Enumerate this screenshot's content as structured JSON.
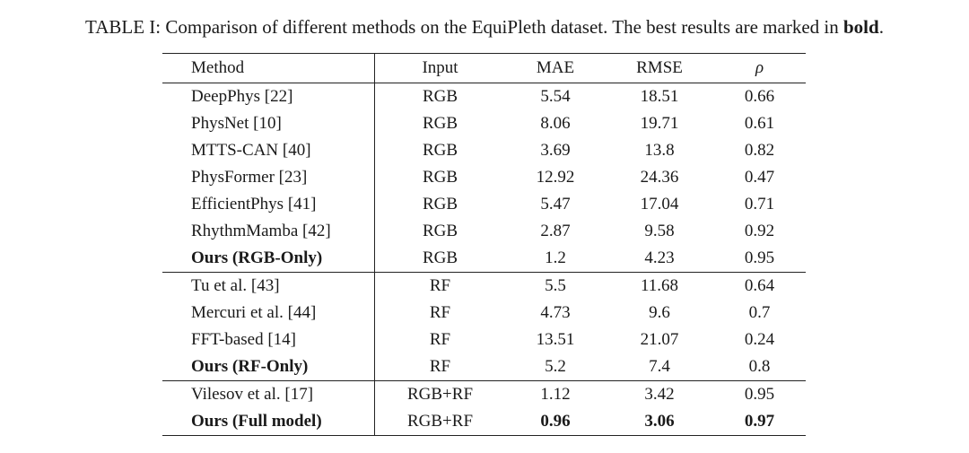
{
  "caption": {
    "prefix": "TABLE I: Comparison of different methods on the EquiPleth dataset. The best results are marked in ",
    "bold_word": "bold",
    "suffix": "."
  },
  "table": {
    "headers": {
      "method": "Method",
      "input": "Input",
      "mae": "MAE",
      "rmse": "RMSE",
      "rho": "ρ"
    },
    "groups": [
      {
        "rows": [
          {
            "method": "DeepPhys [22]",
            "input": "RGB",
            "mae": "5.54",
            "rmse": "18.51",
            "rho": "0.66"
          },
          {
            "method": "PhysNet [10]",
            "input": "RGB",
            "mae": "8.06",
            "rmse": "19.71",
            "rho": "0.61"
          },
          {
            "method": "MTTS-CAN  [40]",
            "input": "RGB",
            "mae": "3.69",
            "rmse": "13.8",
            "rho": "0.82"
          },
          {
            "method": "PhysFormer [23]",
            "input": "RGB",
            "mae": "12.92",
            "rmse": "24.36",
            "rho": "0.47"
          },
          {
            "method": "EfficientPhys [41]",
            "input": "RGB",
            "mae": "5.47",
            "rmse": "17.04",
            "rho": "0.71"
          },
          {
            "method": "RhythmMamba [42]",
            "input": "RGB",
            "mae": "2.87",
            "rmse": "9.58",
            "rho": "0.92"
          },
          {
            "method": "Ours (RGB-Only)",
            "input": "RGB",
            "mae": "1.2",
            "rmse": "4.23",
            "rho": "0.95",
            "bold_method": true
          }
        ]
      },
      {
        "rows": [
          {
            "method": "Tu et al. [43]",
            "input": "RF",
            "mae": "5.5",
            "rmse": "11.68",
            "rho": "0.64"
          },
          {
            "method": "Mercuri et al. [44]",
            "input": "RF",
            "mae": "4.73",
            "rmse": "9.6",
            "rho": "0.7"
          },
          {
            "method": "FFT-based [14]",
            "input": "RF",
            "mae": "13.51",
            "rmse": "21.07",
            "rho": "0.24"
          },
          {
            "method": "Ours (RF-Only)",
            "input": "RF",
            "mae": "5.2",
            "rmse": "7.4",
            "rho": "0.8",
            "bold_method": true
          }
        ]
      },
      {
        "rows": [
          {
            "method": "Vilesov et al. [17]",
            "input": "RGB+RF",
            "mae": "1.12",
            "rmse": "3.42",
            "rho": "0.95"
          },
          {
            "method": "Ours (Full model)",
            "input": "RGB+RF",
            "mae": "0.96",
            "rmse": "3.06",
            "rho": "0.97",
            "bold_method": true,
            "bold_metrics": true
          }
        ]
      }
    ]
  }
}
